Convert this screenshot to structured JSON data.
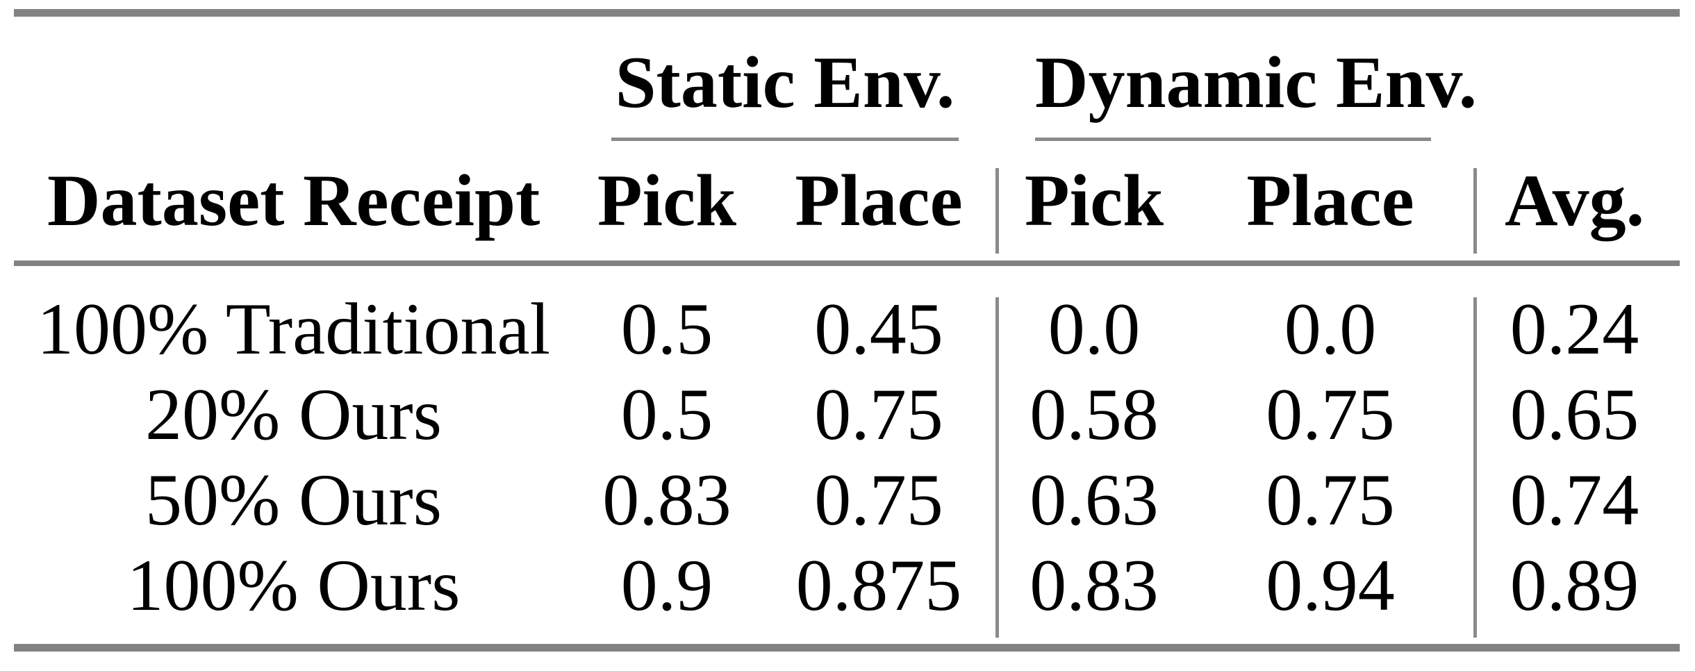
{
  "table": {
    "groups": [
      {
        "label": "Static Env."
      },
      {
        "label": "Dynamic Env."
      }
    ],
    "columns": [
      "Dataset Receipt",
      "Pick",
      "Place",
      "Pick",
      "Place",
      "Avg."
    ],
    "rows": [
      {
        "label": "100% Traditional",
        "cells": [
          "0.5",
          "0.45",
          "0.0",
          "0.0",
          "0.24"
        ]
      },
      {
        "label": "20% Ours",
        "cells": [
          "0.5",
          "0.75",
          "0.58",
          "0.75",
          "0.65"
        ]
      },
      {
        "label": "50% Ours",
        "cells": [
          "0.83",
          "0.75",
          "0.63",
          "0.75",
          "0.74"
        ]
      },
      {
        "label": "100% Ours",
        "cells": [
          "0.9",
          "0.875",
          "0.83",
          "0.94",
          "0.89"
        ]
      }
    ]
  },
  "colors": {
    "heavy_rule": "#828282",
    "light_rule": "#8a8a8a",
    "text": "#000000",
    "background": "#ffffff"
  }
}
